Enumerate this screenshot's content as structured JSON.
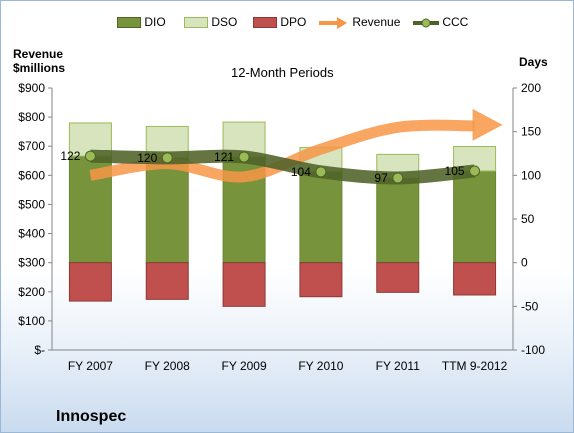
{
  "company": "Innospec",
  "chart_data": {
    "type": "bar",
    "title": "12-Month Periods",
    "ylabel_left": "Revenue $millions",
    "ylabel_left_lines": [
      "Revenue",
      "$millions"
    ],
    "ylabel_right": "Days",
    "categories": [
      "FY 2007",
      "FY 2008",
      "FY 2009",
      "FY 2010",
      "FY 2011",
      "TTM 9-2012"
    ],
    "left_axis": {
      "min": 0,
      "max": 900,
      "step": 100,
      "tick_labels": [
        "$-",
        "$100",
        "$200",
        "$300",
        "$400",
        "$500",
        "$600",
        "$700",
        "$800",
        "$900"
      ]
    },
    "right_axis": {
      "min": -100,
      "max": 200,
      "step": 50,
      "tick_labels": [
        "-100",
        "-50",
        "0",
        "50",
        "100",
        "150",
        "200"
      ]
    },
    "legend_position": "top",
    "series": [
      {
        "name": "DIO",
        "type": "stacked-bar",
        "axis": "right",
        "color": "#77933c",
        "values": [
          122,
          120,
          121,
          104,
          97,
          105
        ]
      },
      {
        "name": "DSO",
        "type": "stacked-bar",
        "axis": "right",
        "color": "#d7e4bd",
        "values": [
          38,
          36,
          40,
          28,
          27,
          28
        ]
      },
      {
        "name": "DPO",
        "type": "stacked-bar",
        "axis": "right",
        "color": "#c0504d",
        "values": [
          -44,
          -42,
          -50,
          -39,
          -34,
          -37
        ]
      },
      {
        "name": "Revenue",
        "type": "line",
        "axis": "left",
        "color": "#f79646",
        "values": [
          600,
          640,
          595,
          690,
          765,
          770
        ]
      },
      {
        "name": "CCC",
        "type": "line",
        "axis": "right",
        "color": "#4f6228",
        "values": [
          122,
          120,
          121,
          104,
          97,
          105
        ],
        "data_labels": [
          "122",
          "120",
          "121",
          "104",
          "97",
          "105"
        ]
      }
    ],
    "grid": false
  }
}
